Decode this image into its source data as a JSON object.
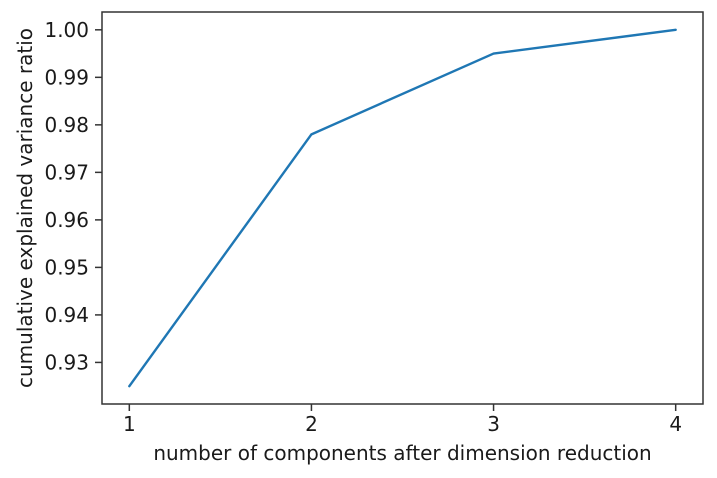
{
  "figure": {
    "background": "#ffffff"
  },
  "chart_data": {
    "type": "line",
    "x": [
      1,
      2,
      3,
      4
    ],
    "y": [
      0.925,
      0.978,
      0.995,
      1.0
    ],
    "title": "",
    "xlabel": "number of components after dimension reduction",
    "ylabel": "cumulative explained variance ratio",
    "x_ticks": [
      1,
      2,
      3,
      4
    ],
    "y_ticks": [
      0.93,
      0.94,
      0.95,
      0.96,
      0.97,
      0.98,
      0.99,
      1.0
    ],
    "y_tick_decimals": 2,
    "xlim": [
      0.85,
      4.15
    ],
    "ylim": [
      0.92125,
      1.00375
    ],
    "grid": false,
    "legend": null,
    "line_color": "#1f77b4",
    "line_width": 2.4,
    "axis_color": "#333333",
    "text_color": "#1a1a1a"
  }
}
